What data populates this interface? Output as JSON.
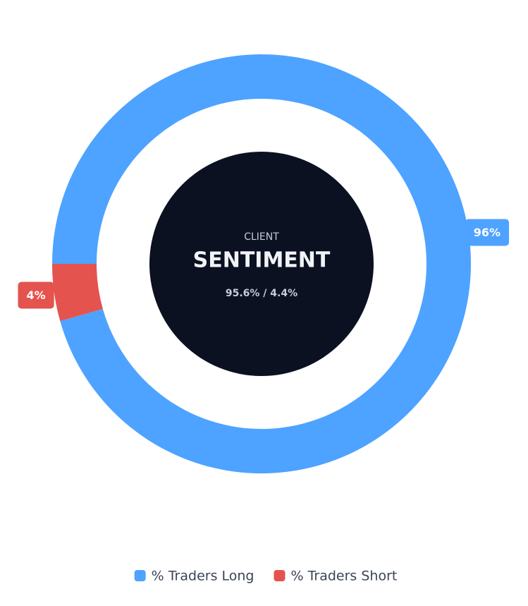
{
  "chart_data": {
    "type": "donut",
    "center_kicker": "CLIENT",
    "center_title": "SENTIMENT",
    "center_subtitle": "95.6% / 4.4%",
    "categories": [
      "% Traders Long",
      "% Traders Short"
    ],
    "values": [
      95.6,
      4.4
    ],
    "value_labels": [
      "96%",
      "4%"
    ],
    "colors": [
      "#4da3ff",
      "#e5534f"
    ],
    "legend": "bottom"
  }
}
